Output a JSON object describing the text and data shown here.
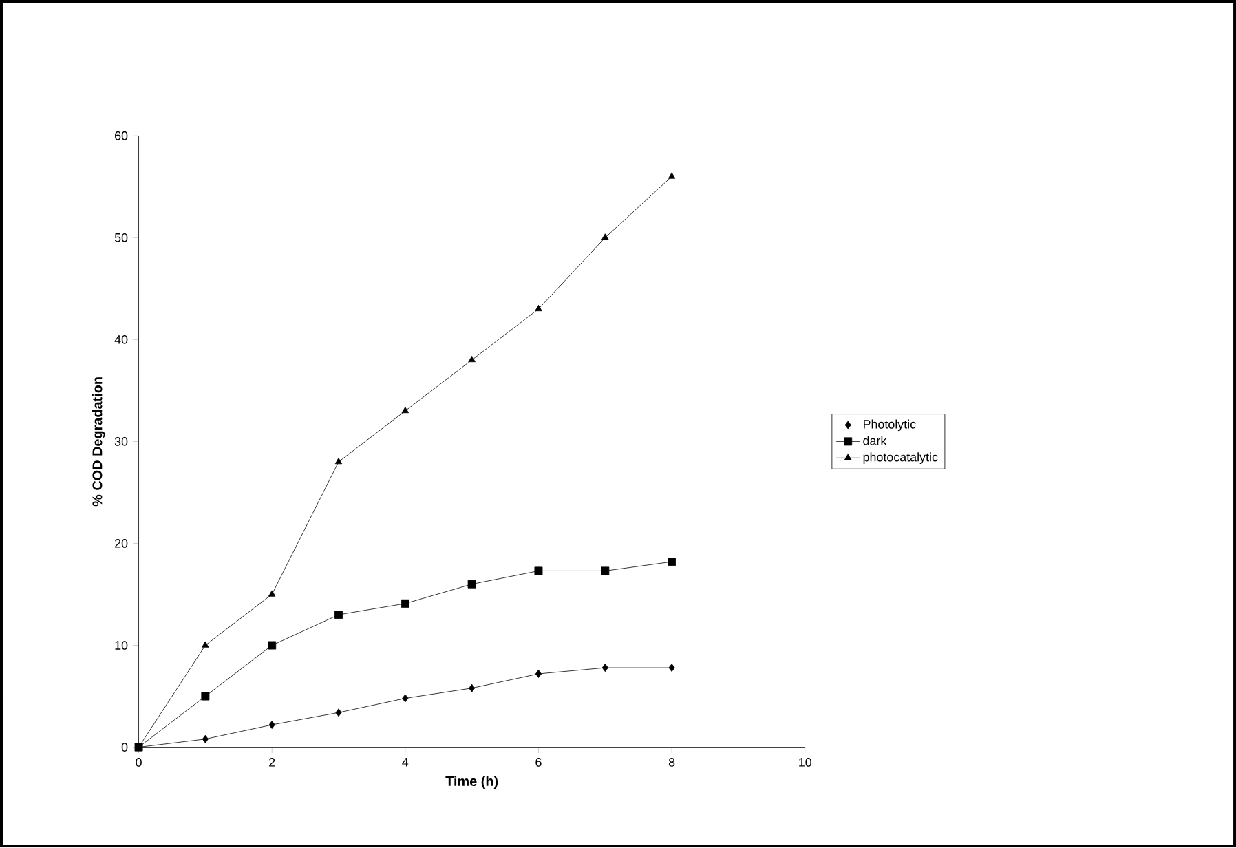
{
  "chart_data": {
    "type": "line",
    "xlabel": "Time (h)",
    "ylabel": "% COD Degradation",
    "x": [
      0,
      1,
      2,
      3,
      4,
      5,
      6,
      7,
      8
    ],
    "series": [
      {
        "name": "Photolytic",
        "color": "#000000",
        "marker": "diamond",
        "values": [
          0,
          0.8,
          2.2,
          3.4,
          4.8,
          5.8,
          7.2,
          7.8,
          7.8
        ]
      },
      {
        "name": "dark",
        "color": "#000000",
        "marker": "square",
        "values": [
          0,
          5,
          10,
          13,
          14.1,
          16,
          17.3,
          17.3,
          18.2
        ]
      },
      {
        "name": "photocatalytic",
        "color": "#000000",
        "marker": "triangle",
        "values": [
          0,
          10,
          15,
          28,
          33,
          38,
          43,
          50,
          56
        ]
      }
    ],
    "xlim": [
      0,
      10
    ],
    "ylim": [
      0,
      60
    ],
    "xticks": [
      0,
      2,
      4,
      6,
      8,
      10
    ],
    "yticks": [
      0,
      10,
      20,
      30,
      40,
      50,
      60
    ],
    "grid": false,
    "legend": "right",
    "line_style": "solid"
  }
}
